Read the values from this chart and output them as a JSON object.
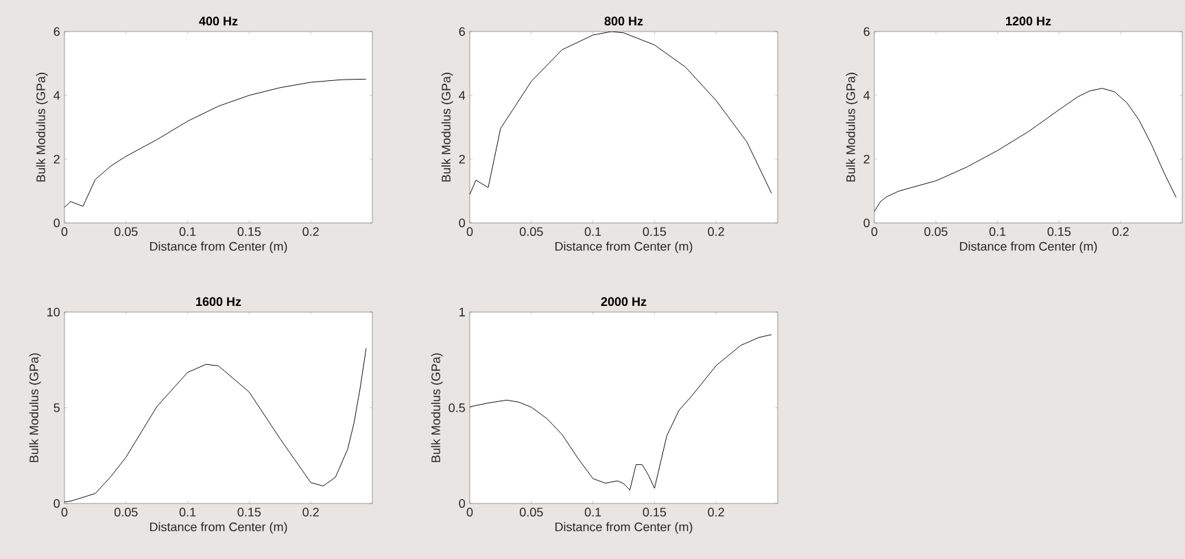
{
  "chart_data": [
    {
      "type": "line",
      "title": "400 Hz",
      "xlabel": "Distance from Center (m)",
      "ylabel": "Bulk Modulus (GPa)",
      "xlim": [
        0,
        0.25
      ],
      "xticks": [
        0,
        0.05,
        0.1,
        0.15,
        0.2
      ],
      "ylim": [
        0,
        6
      ],
      "yticks": [
        0,
        2,
        4,
        6
      ],
      "line_style": "solid",
      "series": [
        {
          "color": "#000000",
          "x": [
            0,
            0.005,
            0.015,
            0.025,
            0.0375,
            0.05,
            0.075,
            0.1,
            0.125,
            0.15,
            0.175,
            0.2,
            0.225,
            0.245
          ],
          "values": [
            0.49,
            0.67,
            0.52,
            1.36,
            1.78,
            2.09,
            2.61,
            3.19,
            3.66,
            4.0,
            4.24,
            4.41,
            4.49,
            4.51
          ]
        }
      ]
    },
    {
      "type": "line",
      "title": "800 Hz",
      "xlabel": "Distance from Center (m)",
      "ylabel": "Bulk Modulus (GPa)",
      "xlim": [
        0,
        0.25
      ],
      "xticks": [
        0,
        0.05,
        0.1,
        0.15,
        0.2
      ],
      "ylim": [
        0,
        6
      ],
      "yticks": [
        0,
        2,
        4,
        6
      ],
      "line_style": "solid",
      "series": [
        {
          "color": "#000000",
          "x": [
            0,
            0.005,
            0.015,
            0.025,
            0.0375,
            0.05,
            0.075,
            0.1,
            0.115,
            0.125,
            0.15,
            0.175,
            0.2,
            0.225,
            0.245
          ],
          "values": [
            0.89,
            1.34,
            1.11,
            2.96,
            3.7,
            4.44,
            5.43,
            5.89,
            6.0,
            5.96,
            5.58,
            4.89,
            3.84,
            2.54,
            0.93
          ]
        }
      ]
    },
    {
      "type": "line",
      "title": "1200 Hz",
      "xlabel": "Distance from Center (m)",
      "ylabel": "Bulk Modulus (GPa)",
      "xlim": [
        0,
        0.25
      ],
      "xticks": [
        0,
        0.05,
        0.1,
        0.15,
        0.2
      ],
      "ylim": [
        0,
        6
      ],
      "yticks": [
        0,
        2,
        4,
        6
      ],
      "line_style": "solid",
      "series": [
        {
          "color": "#000000",
          "x": [
            0,
            0.005,
            0.01,
            0.02,
            0.035,
            0.05,
            0.075,
            0.1,
            0.125,
            0.15,
            0.165,
            0.175,
            0.185,
            0.195,
            0.205,
            0.215,
            0.225,
            0.235,
            0.245
          ],
          "values": [
            0.36,
            0.67,
            0.82,
            1.0,
            1.16,
            1.32,
            1.75,
            2.27,
            2.86,
            3.55,
            3.95,
            4.14,
            4.22,
            4.11,
            3.77,
            3.22,
            2.46,
            1.59,
            0.8
          ]
        }
      ]
    },
    {
      "type": "line",
      "title": "1600 Hz",
      "xlabel": "Distance from Center (m)",
      "ylabel": "Bulk Modulus (GPa)",
      "xlim": [
        0,
        0.25
      ],
      "xticks": [
        0,
        0.05,
        0.1,
        0.15,
        0.2
      ],
      "ylim": [
        0,
        10
      ],
      "yticks": [
        0,
        5,
        10
      ],
      "line_style": "solid",
      "series": [
        {
          "color": "#000000",
          "x": [
            0,
            0.005,
            0.025,
            0.0375,
            0.05,
            0.075,
            0.1,
            0.115,
            0.125,
            0.15,
            0.175,
            0.2,
            0.21,
            0.22,
            0.23,
            0.235,
            0.24,
            0.245
          ],
          "values": [
            0.08,
            0.12,
            0.52,
            1.39,
            2.42,
            5.06,
            6.85,
            7.27,
            7.19,
            5.82,
            3.39,
            1.09,
            0.91,
            1.37,
            2.85,
            4.18,
            6.0,
            8.12
          ]
        }
      ]
    },
    {
      "type": "line",
      "title": "2000 Hz",
      "xlabel": "Distance from Center (m)",
      "ylabel": "Bulk Modulus (GPa)",
      "xlim": [
        0,
        0.25
      ],
      "xticks": [
        0,
        0.05,
        0.1,
        0.15,
        0.2
      ],
      "ylim": [
        0,
        1
      ],
      "yticks": [
        0,
        0.5,
        1
      ],
      "line_style": "solid",
      "series": [
        {
          "color": "#000000",
          "x": [
            0,
            0.015,
            0.03,
            0.04,
            0.05,
            0.0625,
            0.075,
            0.0875,
            0.1,
            0.11,
            0.12,
            0.125,
            0.13,
            0.135,
            0.14,
            0.145,
            0.15,
            0.16,
            0.17,
            0.18,
            0.2,
            0.22,
            0.235,
            0.245
          ],
          "values": [
            0.505,
            0.525,
            0.54,
            0.529,
            0.503,
            0.444,
            0.36,
            0.239,
            0.13,
            0.106,
            0.118,
            0.104,
            0.07,
            0.203,
            0.203,
            0.149,
            0.079,
            0.354,
            0.488,
            0.56,
            0.72,
            0.826,
            0.868,
            0.882
          ]
        }
      ]
    }
  ]
}
